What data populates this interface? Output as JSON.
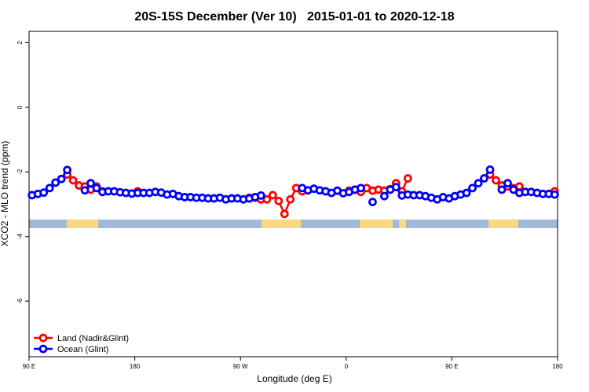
{
  "chart_data": {
    "type": "line",
    "title": "20S-15S December (Ver 10)   2015-01-01 to 2020-12-18",
    "x_label": "Longitude (deg E)",
    "y_label": "XCO2 - MLO trend (ppm)",
    "xlim": [
      90,
      540
    ],
    "xticks": [
      {
        "value": 90,
        "label": "90 E"
      },
      180,
      {
        "value": 270,
        "label": "90 W"
      },
      {
        "value": 360,
        "label": "0"
      },
      {
        "value": 450,
        "label": "90 E"
      },
      {
        "value": 540,
        "label": "180"
      }
    ],
    "ylim": [
      -7.72,
      2.35
    ],
    "yticks": [
      -6,
      -4,
      -2,
      0,
      2
    ],
    "legend": "bottomleft",
    "x": [
      92.5,
      97.5,
      102.5,
      107.5,
      112.5,
      117.5,
      122.5,
      127.5,
      132.5,
      137.5,
      142.5,
      147.5,
      152.5,
      157.5,
      162.5,
      167.5,
      172.5,
      177.5,
      182.5,
      187.5,
      192.5,
      197.5,
      202.5,
      207.5,
      212.5,
      217.5,
      222.5,
      227.5,
      232.5,
      237.5,
      242.5,
      247.5,
      252.5,
      257.5,
      262.5,
      267.5,
      272.5,
      277.5,
      282.5,
      287.5,
      292.5,
      297.5,
      302.5,
      307.5,
      312.5,
      317.5,
      322.5,
      327.5,
      332.5,
      337.5,
      342.5,
      347.5,
      352.5,
      357.5,
      362.5,
      367.5,
      372.5,
      377.5,
      382.5,
      387.5,
      392.5,
      397.5,
      402.5,
      407.5,
      412.5,
      417.5,
      422.5,
      427.5,
      432.5,
      437.5,
      442.5,
      447.5,
      452.5,
      457.5,
      462.5,
      467.5,
      472.5,
      477.5,
      482.5,
      487.5,
      492.5,
      497.5,
      502.5,
      507.5,
      512.5,
      517.5,
      522.5,
      527.5,
      532.5,
      537.5
    ],
    "series": [
      {
        "name": "Land (Nadir&Glint)",
        "color": "#ff0000",
        "values": [
          null,
          null,
          null,
          null,
          null,
          null,
          -2.08,
          -2.26,
          -2.42,
          -2.45,
          -2.55,
          -2.45,
          -2.6,
          null,
          null,
          null,
          null,
          null,
          -2.6,
          null,
          null,
          null,
          null,
          null,
          null,
          null,
          null,
          null,
          null,
          null,
          null,
          null,
          null,
          null,
          null,
          null,
          null,
          -2.8,
          -2.8,
          -2.85,
          -2.85,
          -2.72,
          -2.9,
          -3.3,
          -2.85,
          -2.5,
          -2.6,
          null,
          null,
          null,
          null,
          null,
          null,
          null,
          -2.58,
          -2.55,
          -2.62,
          -2.5,
          -2.58,
          -2.55,
          -2.58,
          -2.53,
          -2.35,
          -2.6,
          -2.2,
          null,
          null,
          null,
          null,
          null,
          null,
          null,
          null,
          null,
          null,
          null,
          null,
          null,
          -2.08,
          -2.26,
          -2.42,
          -2.45,
          -2.5,
          -2.45,
          null,
          null,
          null,
          null,
          null,
          -2.6
        ]
      },
      {
        "name": "Ocean (Glint)",
        "color": "#0000ff",
        "values": [
          -2.72,
          -2.68,
          -2.64,
          -2.5,
          -2.33,
          -2.22,
          -1.94,
          null,
          null,
          -2.57,
          -2.35,
          -2.5,
          -2.62,
          -2.6,
          -2.6,
          -2.63,
          -2.65,
          -2.67,
          -2.65,
          -2.65,
          -2.65,
          -2.62,
          -2.64,
          -2.7,
          -2.68,
          -2.75,
          -2.78,
          -2.78,
          -2.8,
          -2.8,
          -2.82,
          -2.82,
          -2.8,
          -2.85,
          -2.82,
          -2.82,
          -2.85,
          -2.82,
          -2.78,
          -2.73,
          null,
          null,
          null,
          null,
          null,
          null,
          -2.5,
          -2.57,
          -2.52,
          -2.57,
          -2.6,
          -2.65,
          -2.58,
          -2.66,
          -2.62,
          -2.55,
          -2.5,
          null,
          -2.93,
          null,
          -2.75,
          -2.55,
          -2.47,
          -2.73,
          -2.7,
          -2.72,
          -2.72,
          -2.75,
          -2.8,
          -2.85,
          -2.78,
          -2.82,
          -2.75,
          -2.7,
          -2.65,
          -2.5,
          -2.35,
          -2.2,
          -1.93,
          null,
          -2.55,
          -2.35,
          -2.55,
          -2.65,
          -2.62,
          -2.62,
          -2.65,
          -2.68,
          -2.68,
          -2.7
        ]
      }
    ]
  }
}
